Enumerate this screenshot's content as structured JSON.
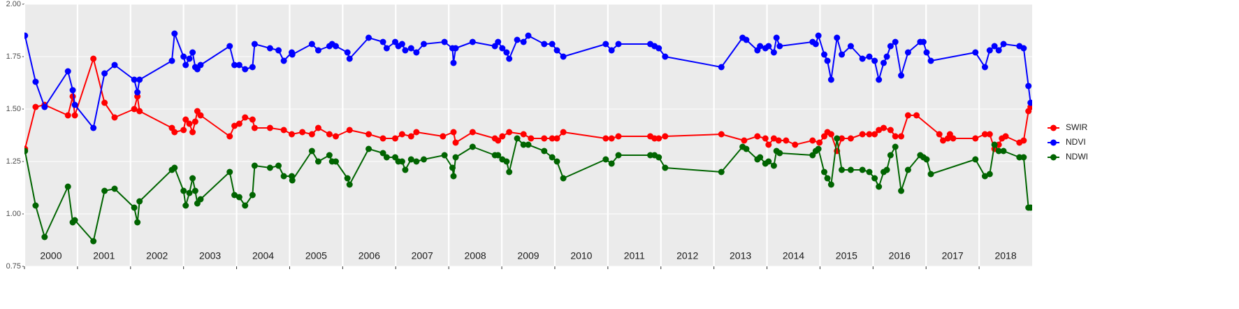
{
  "chart_data": {
    "type": "line",
    "xlim": [
      2000,
      2019
    ],
    "xticks": [
      2000,
      2001,
      2002,
      2003,
      2004,
      2005,
      2006,
      2007,
      2008,
      2009,
      2010,
      2011,
      2012,
      2013,
      2014,
      2015,
      2016,
      2017,
      2018
    ],
    "year_labels": [
      "2000",
      "2001",
      "2002",
      "2003",
      "2004",
      "2005",
      "2006",
      "2007",
      "2008",
      "2009",
      "2010",
      "2011",
      "2012",
      "2013",
      "2014",
      "2015",
      "2016",
      "2017",
      "2018"
    ],
    "ylim": [
      0.75,
      2.0
    ],
    "yticks": [
      {
        "value": 0.75,
        "label": "0.75"
      },
      {
        "value": 1.0,
        "label": "1.00"
      },
      {
        "value": 1.25,
        "label": "1.25"
      },
      {
        "value": 1.5,
        "label": "1.50"
      },
      {
        "value": 1.75,
        "label": "1.75"
      },
      {
        "value": 2.0,
        "label": "2.00"
      }
    ],
    "grid": true,
    "legend": "right",
    "series": [
      {
        "name": "SWIR",
        "color": "#ff0000",
        "x": [
          2000.01,
          2000.21,
          2000.38,
          2000.82,
          2000.91,
          2000.95,
          2001.3,
          2001.51,
          2001.7,
          2002.07,
          2002.13,
          2002.17,
          2002.78,
          2002.83,
          2003.0,
          2003.04,
          2003.11,
          2003.17,
          2003.22,
          2003.26,
          2003.32,
          2003.87,
          2003.96,
          2004.05,
          2004.16,
          2004.3,
          2004.34,
          2004.63,
          2004.89,
          2005.04,
          2005.24,
          2005.42,
          2005.54,
          2005.75,
          2005.87,
          2006.13,
          2006.49,
          2006.76,
          2006.99,
          2007.12,
          2007.29,
          2007.39,
          2007.89,
          2008.09,
          2008.13,
          2008.45,
          2008.87,
          2008.93,
          2009.01,
          2009.14,
          2009.41,
          2009.55,
          2009.8,
          2009.95,
          2010.04,
          2010.16,
          2010.96,
          2011.07,
          2011.2,
          2011.8,
          2011.88,
          2011.96,
          2012.08,
          2013.14,
          2013.57,
          2013.82,
          2013.97,
          2014.03,
          2014.13,
          2014.22,
          2014.36,
          2014.53,
          2014.86,
          2014.99,
          2015.08,
          2015.14,
          2015.21,
          2015.32,
          2015.41,
          2015.58,
          2015.8,
          2015.93,
          2016.03,
          2016.11,
          2016.2,
          2016.33,
          2016.42,
          2016.53,
          2016.66,
          2016.82,
          2017.25,
          2017.32,
          2017.41,
          2017.45,
          2017.51,
          2017.93,
          2018.11,
          2018.2,
          2018.29,
          2018.37,
          2018.43,
          2018.5,
          2018.76,
          2018.84,
          2018.93,
          2018.97
        ],
        "values": [
          1.31,
          1.51,
          1.52,
          1.47,
          1.56,
          1.47,
          1.74,
          1.53,
          1.46,
          1.5,
          1.56,
          1.49,
          1.41,
          1.39,
          1.4,
          1.45,
          1.43,
          1.39,
          1.44,
          1.49,
          1.47,
          1.37,
          1.42,
          1.43,
          1.46,
          1.45,
          1.41,
          1.41,
          1.4,
          1.38,
          1.39,
          1.38,
          1.41,
          1.38,
          1.37,
          1.4,
          1.38,
          1.36,
          1.36,
          1.38,
          1.37,
          1.39,
          1.37,
          1.39,
          1.34,
          1.39,
          1.36,
          1.35,
          1.37,
          1.39,
          1.38,
          1.36,
          1.36,
          1.36,
          1.36,
          1.39,
          1.36,
          1.36,
          1.37,
          1.37,
          1.36,
          1.36,
          1.37,
          1.38,
          1.35,
          1.37,
          1.36,
          1.33,
          1.36,
          1.35,
          1.35,
          1.33,
          1.35,
          1.34,
          1.37,
          1.39,
          1.38,
          1.3,
          1.36,
          1.36,
          1.38,
          1.38,
          1.38,
          1.4,
          1.41,
          1.4,
          1.37,
          1.37,
          1.47,
          1.47,
          1.38,
          1.35,
          1.36,
          1.38,
          1.36,
          1.36,
          1.38,
          1.38,
          1.31,
          1.33,
          1.36,
          1.37,
          1.34,
          1.35,
          1.49,
          1.51
        ]
      },
      {
        "name": "NDVI",
        "color": "#0000ff",
        "x": [
          2000.01,
          2000.21,
          2000.38,
          2000.82,
          2000.91,
          2000.95,
          2001.3,
          2001.51,
          2001.7,
          2002.07,
          2002.13,
          2002.17,
          2002.78,
          2002.83,
          2003.0,
          2003.04,
          2003.11,
          2003.17,
          2003.22,
          2003.26,
          2003.32,
          2003.87,
          2003.96,
          2004.05,
          2004.16,
          2004.3,
          2004.34,
          2004.63,
          2004.79,
          2004.89,
          2005.04,
          2005.05,
          2005.42,
          2005.54,
          2005.75,
          2005.8,
          2005.87,
          2006.09,
          2006.13,
          2006.49,
          2006.76,
          2006.83,
          2006.99,
          2007.05,
          2007.12,
          2007.18,
          2007.29,
          2007.39,
          2007.53,
          2007.92,
          2008.07,
          2008.09,
          2008.13,
          2008.45,
          2008.87,
          2008.93,
          2009.01,
          2009.09,
          2009.14,
          2009.29,
          2009.41,
          2009.5,
          2009.8,
          2009.95,
          2010.04,
          2010.16,
          2010.96,
          2011.07,
          2011.2,
          2011.8,
          2011.88,
          2011.96,
          2012.08,
          2013.14,
          2013.54,
          2013.61,
          2013.82,
          2013.87,
          2013.97,
          2014.03,
          2014.13,
          2014.18,
          2014.24,
          2014.86,
          2014.92,
          2014.97,
          2015.08,
          2015.14,
          2015.21,
          2015.32,
          2015.41,
          2015.58,
          2015.8,
          2015.93,
          2016.03,
          2016.11,
          2016.2,
          2016.26,
          2016.33,
          2016.42,
          2016.53,
          2016.66,
          2016.89,
          2016.95,
          2017.01,
          2017.09,
          2017.93,
          2018.11,
          2018.2,
          2018.29,
          2018.37,
          2018.46,
          2018.76,
          2018.84,
          2018.93,
          2018.97
        ],
        "values": [
          1.85,
          1.63,
          1.51,
          1.68,
          1.59,
          1.52,
          1.41,
          1.67,
          1.71,
          1.64,
          1.58,
          1.64,
          1.73,
          1.86,
          1.75,
          1.71,
          1.74,
          1.77,
          1.7,
          1.69,
          1.71,
          1.8,
          1.71,
          1.71,
          1.69,
          1.7,
          1.81,
          1.79,
          1.78,
          1.73,
          1.77,
          1.76,
          1.81,
          1.78,
          1.8,
          1.81,
          1.8,
          1.77,
          1.74,
          1.84,
          1.82,
          1.79,
          1.82,
          1.8,
          1.81,
          1.78,
          1.79,
          1.77,
          1.81,
          1.82,
          1.79,
          1.72,
          1.79,
          1.82,
          1.8,
          1.82,
          1.79,
          1.77,
          1.74,
          1.83,
          1.82,
          1.85,
          1.81,
          1.81,
          1.78,
          1.75,
          1.81,
          1.78,
          1.81,
          1.81,
          1.8,
          1.79,
          1.75,
          1.7,
          1.84,
          1.83,
          1.78,
          1.8,
          1.79,
          1.8,
          1.77,
          1.84,
          1.8,
          1.82,
          1.81,
          1.85,
          1.76,
          1.73,
          1.64,
          1.84,
          1.76,
          1.8,
          1.74,
          1.75,
          1.73,
          1.64,
          1.72,
          1.75,
          1.8,
          1.82,
          1.66,
          1.77,
          1.82,
          1.82,
          1.77,
          1.73,
          1.77,
          1.7,
          1.78,
          1.8,
          1.78,
          1.81,
          1.8,
          1.79,
          1.61,
          1.53
        ]
      },
      {
        "name": "NDWI",
        "color": "#006400",
        "x": [
          2000.01,
          2000.21,
          2000.38,
          2000.82,
          2000.91,
          2000.95,
          2001.3,
          2001.51,
          2001.7,
          2002.07,
          2002.13,
          2002.17,
          2002.78,
          2002.83,
          2003.0,
          2003.04,
          2003.11,
          2003.17,
          2003.22,
          2003.26,
          2003.32,
          2003.87,
          2003.96,
          2004.05,
          2004.16,
          2004.3,
          2004.34,
          2004.63,
          2004.79,
          2004.89,
          2005.04,
          2005.05,
          2005.42,
          2005.54,
          2005.75,
          2005.8,
          2005.87,
          2006.09,
          2006.13,
          2006.49,
          2006.76,
          2006.83,
          2006.99,
          2007.05,
          2007.12,
          2007.18,
          2007.29,
          2007.39,
          2007.53,
          2007.92,
          2008.07,
          2008.09,
          2008.13,
          2008.45,
          2008.87,
          2008.93,
          2009.01,
          2009.09,
          2009.14,
          2009.29,
          2009.41,
          2009.5,
          2009.8,
          2009.95,
          2010.04,
          2010.16,
          2010.96,
          2011.07,
          2011.2,
          2011.8,
          2011.88,
          2011.96,
          2012.08,
          2013.14,
          2013.54,
          2013.61,
          2013.82,
          2013.87,
          2013.97,
          2014.03,
          2014.13,
          2014.18,
          2014.24,
          2014.86,
          2014.92,
          2014.97,
          2015.08,
          2015.14,
          2015.21,
          2015.32,
          2015.41,
          2015.58,
          2015.8,
          2015.93,
          2016.03,
          2016.11,
          2016.2,
          2016.26,
          2016.33,
          2016.42,
          2016.53,
          2016.66,
          2016.89,
          2016.95,
          2017.01,
          2017.09,
          2017.93,
          2018.11,
          2018.2,
          2018.29,
          2018.37,
          2018.46,
          2018.76,
          2018.84,
          2018.93,
          2018.97
        ],
        "values": [
          1.3,
          1.04,
          0.89,
          1.13,
          0.96,
          0.97,
          0.87,
          1.11,
          1.12,
          1.03,
          0.96,
          1.06,
          1.21,
          1.22,
          1.11,
          1.04,
          1.1,
          1.17,
          1.11,
          1.05,
          1.07,
          1.2,
          1.09,
          1.08,
          1.04,
          1.09,
          1.23,
          1.22,
          1.23,
          1.18,
          1.18,
          1.16,
          1.3,
          1.25,
          1.28,
          1.25,
          1.25,
          1.17,
          1.14,
          1.31,
          1.29,
          1.27,
          1.27,
          1.25,
          1.25,
          1.21,
          1.26,
          1.25,
          1.26,
          1.28,
          1.22,
          1.18,
          1.27,
          1.32,
          1.28,
          1.28,
          1.26,
          1.25,
          1.2,
          1.36,
          1.33,
          1.33,
          1.3,
          1.27,
          1.25,
          1.17,
          1.26,
          1.24,
          1.28,
          1.28,
          1.28,
          1.27,
          1.22,
          1.2,
          1.32,
          1.31,
          1.26,
          1.27,
          1.24,
          1.25,
          1.23,
          1.3,
          1.29,
          1.28,
          1.3,
          1.31,
          1.2,
          1.17,
          1.14,
          1.36,
          1.21,
          1.21,
          1.21,
          1.2,
          1.17,
          1.13,
          1.2,
          1.21,
          1.28,
          1.32,
          1.11,
          1.21,
          1.28,
          1.27,
          1.26,
          1.19,
          1.26,
          1.18,
          1.19,
          1.33,
          1.3,
          1.3,
          1.27,
          1.27,
          1.03,
          1.03
        ]
      }
    ]
  }
}
